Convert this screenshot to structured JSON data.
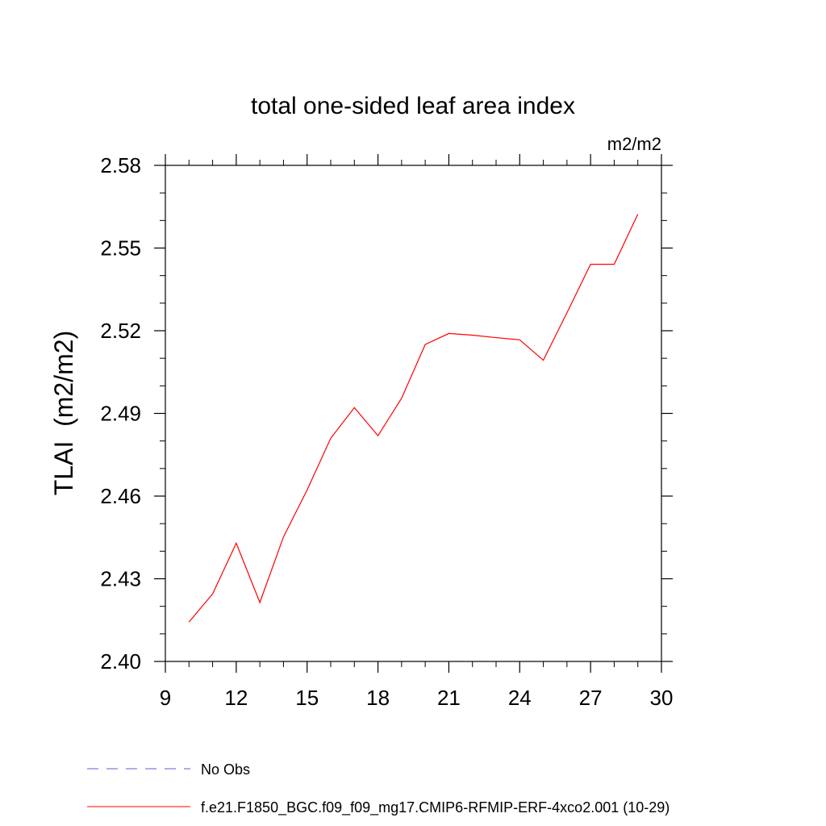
{
  "chart_data": {
    "type": "line",
    "title": "total one-sided leaf area index",
    "units_label": "m2/m2",
    "ylabel": "TLAI  (m2/m2)",
    "xlabel": "",
    "xlim": [
      9,
      30
    ],
    "ylim": [
      2.4,
      2.58
    ],
    "x_ticks": [
      "9",
      "12",
      "15",
      "18",
      "21",
      "24",
      "27",
      "30"
    ],
    "y_ticks": [
      "2.40",
      "2.43",
      "2.46",
      "2.49",
      "2.52",
      "2.55",
      "2.58"
    ],
    "grid": false,
    "legend_position": "bottom-left",
    "series": [
      {
        "name": "No Obs",
        "color": "#6a5acd",
        "style": "dashed",
        "x": [],
        "y": []
      },
      {
        "name": "f.e21.F1850_BGC.f09_f09_mg17.CMIP6-RFMIP-ERF-4xco2.001 (10-29)",
        "color": "#ff0000",
        "style": "solid",
        "x": [
          10,
          11,
          12,
          13,
          14,
          15,
          16,
          17,
          18,
          19,
          20,
          21,
          22,
          23,
          24,
          25,
          26,
          27,
          28,
          29
        ],
        "y": [
          2.4143,
          2.4245,
          2.4429,
          2.4214,
          2.4452,
          2.4622,
          2.481,
          2.4921,
          2.4819,
          2.4955,
          2.515,
          2.519,
          2.5184,
          2.5175,
          2.5167,
          2.5093,
          2.5265,
          2.5441,
          2.5441,
          2.5623
        ]
      }
    ]
  }
}
